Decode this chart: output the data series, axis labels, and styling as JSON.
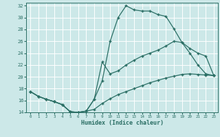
{
  "xlabel": "Humidex (Indice chaleur)",
  "bg_color": "#cce8e8",
  "grid_color": "#ffffff",
  "line_color": "#2a6e64",
  "xlim": [
    -0.5,
    23.5
  ],
  "ylim": [
    14,
    32.5
  ],
  "xticks": [
    0,
    1,
    2,
    3,
    4,
    5,
    6,
    7,
    8,
    9,
    10,
    11,
    12,
    13,
    14,
    15,
    16,
    17,
    18,
    19,
    20,
    21,
    22,
    23
  ],
  "yticks": [
    14,
    16,
    18,
    20,
    22,
    24,
    26,
    28,
    30,
    32
  ],
  "line1_x": [
    0,
    1,
    2,
    3,
    4,
    5,
    6,
    7,
    8,
    9,
    10,
    11,
    12,
    13,
    14,
    15,
    16,
    17,
    18,
    19,
    20,
    21,
    22,
    23
  ],
  "line1_y": [
    17.5,
    16.7,
    16.2,
    15.8,
    15.3,
    14.1,
    14.0,
    14.2,
    16.2,
    19.3,
    26.0,
    30.0,
    32.0,
    31.3,
    31.1,
    31.1,
    30.5,
    30.2,
    28.1,
    25.8,
    24.8,
    24.0,
    23.5,
    20.2
  ],
  "line2_x": [
    0,
    1,
    2,
    3,
    4,
    5,
    6,
    7,
    8,
    9,
    10,
    11,
    12,
    13,
    14,
    15,
    16,
    17,
    18,
    19,
    20,
    21,
    22,
    23
  ],
  "line2_y": [
    17.5,
    16.7,
    16.2,
    15.8,
    15.3,
    14.1,
    14.0,
    14.2,
    16.2,
    22.5,
    20.5,
    21.0,
    22.0,
    22.8,
    23.5,
    24.0,
    24.5,
    25.2,
    26.0,
    25.8,
    24.0,
    22.0,
    20.5,
    20.2
  ],
  "line3_x": [
    0,
    1,
    2,
    3,
    4,
    5,
    6,
    7,
    8,
    9,
    10,
    11,
    12,
    13,
    14,
    15,
    16,
    17,
    18,
    19,
    20,
    21,
    22,
    23
  ],
  "line3_y": [
    17.5,
    16.7,
    16.2,
    15.8,
    15.3,
    14.1,
    14.0,
    14.2,
    14.5,
    15.5,
    16.3,
    17.0,
    17.5,
    18.0,
    18.5,
    19.0,
    19.4,
    19.8,
    20.1,
    20.4,
    20.5,
    20.4,
    20.3,
    20.2
  ],
  "marker": "+",
  "markersize": 3.5,
  "linewidth": 0.9
}
